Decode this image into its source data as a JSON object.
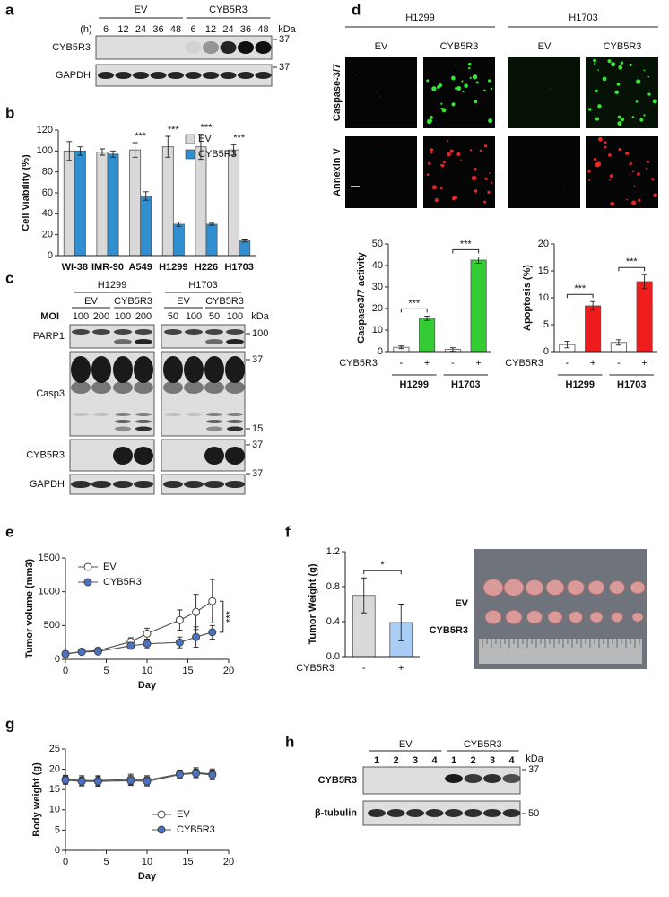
{
  "labels": [
    "a",
    "b",
    "c",
    "d",
    "e",
    "f",
    "g",
    "h"
  ],
  "panel_a": {
    "unit_header": "(h)",
    "groups": [
      "EV",
      "CYB5R3"
    ],
    "lanes": [
      "6",
      "12",
      "24",
      "36",
      "48",
      "6",
      "12",
      "24",
      "36",
      "48"
    ],
    "kda": "kDa",
    "rows": [
      {
        "name": "CYB5R3",
        "marker": "37"
      },
      {
        "name": "GAPDH",
        "marker": "37"
      }
    ]
  },
  "panel_c": {
    "cells": [
      "H1299",
      "H1703"
    ],
    "groups": [
      "EV",
      "CYB5R3",
      "EV",
      "CYB5R3"
    ],
    "moi_label": "MOI",
    "lanes": [
      "100",
      "200",
      "100",
      "200",
      "50",
      "100",
      "50",
      "100"
    ],
    "kda": "kDa",
    "rows": [
      {
        "name": "PARP1",
        "markers": [
          "100"
        ]
      },
      {
        "name": "Casp3",
        "markers": [
          "37",
          "15"
        ]
      },
      {
        "name": "CYB5R3",
        "markers": [
          "37"
        ]
      },
      {
        "name": "GAPDH",
        "markers": [
          "37"
        ]
      }
    ]
  },
  "panel_d_images": {
    "cells": [
      "H1299",
      "H1703"
    ],
    "columns": [
      "EV",
      "CYB5R3",
      "EV",
      "CYB5R3"
    ],
    "rows": [
      "Caspase-3/7",
      "Annexin V"
    ]
  },
  "panel_f_photo": {
    "rows": [
      "EV",
      "CYB5R3"
    ]
  },
  "panel_h": {
    "groups": [
      "EV",
      "CYB5R3"
    ],
    "lanes": [
      "1",
      "2",
      "3",
      "4",
      "1",
      "2",
      "3",
      "4"
    ],
    "kda": "kDa",
    "rows": [
      {
        "name": "CYB5R3",
        "marker": "37"
      },
      {
        "name": "β-tubulin",
        "marker": "50"
      }
    ]
  },
  "chart_data": [
    {
      "type": "bar",
      "ylabel": "Cell Viability (%)",
      "categories": [
        "WI-38",
        "IMR-90",
        "A549",
        "H1299",
        "H226",
        "H1703"
      ],
      "series": [
        {
          "name": "EV",
          "color": "#d9d9d9",
          "values": [
            100,
            99,
            101,
            104,
            104,
            101
          ],
          "errors": [
            9,
            3,
            7,
            10,
            12,
            5
          ]
        },
        {
          "name": "CYB5R3",
          "color": "#2f8fd0",
          "values": [
            100,
            97,
            57,
            30,
            30,
            14
          ],
          "errors": [
            4,
            3,
            4,
            2,
            1,
            1
          ]
        }
      ],
      "ylim": [
        0,
        120
      ],
      "yticks": [
        0,
        20,
        40,
        60,
        80,
        100,
        120
      ],
      "annotations": [
        null,
        null,
        "***",
        "***",
        "***",
        "***"
      ],
      "legend": "upper right"
    },
    {
      "type": "bar",
      "ylabel": "Caspase3/7 activity",
      "categories": [
        "-",
        "+",
        "-",
        "+"
      ],
      "values": [
        2,
        15.5,
        1,
        42.5
      ],
      "errors": [
        0.6,
        1,
        0.8,
        1.5
      ],
      "colors": [
        "#ffffff",
        "#33cc33",
        "#ffffff",
        "#33cc33"
      ],
      "row_label": "CYB5R3",
      "groups": [
        "H1299",
        "H1703"
      ],
      "ylim": [
        0,
        50
      ],
      "yticks": [
        0,
        10,
        20,
        30,
        40,
        50
      ],
      "annotations": [
        "***",
        "***"
      ]
    },
    {
      "type": "bar",
      "ylabel": "Apoptosis (%)",
      "categories": [
        "-",
        "+",
        "-",
        "+"
      ],
      "values": [
        1.3,
        8.5,
        1.7,
        13
      ],
      "errors": [
        0.6,
        0.8,
        0.5,
        1.3
      ],
      "colors": [
        "#ffffff",
        "#ee1c1c",
        "#ffffff",
        "#ee1c1c"
      ],
      "row_label": "CYB5R3",
      "groups": [
        "H1299",
        "H1703"
      ],
      "ylim": [
        0,
        20
      ],
      "yticks": [
        0,
        5,
        10,
        15,
        20
      ],
      "annotations": [
        "***",
        "***"
      ]
    },
    {
      "type": "line",
      "xlabel": "Day",
      "ylabel": "Tumor volume (mm3)",
      "x": [
        0,
        2,
        4,
        8,
        10,
        14,
        16,
        18
      ],
      "series": [
        {
          "name": "EV",
          "color": "#ffffff",
          "values": [
            80,
            115,
            130,
            260,
            380,
            580,
            700,
            860
          ],
          "errors": [
            15,
            20,
            30,
            60,
            80,
            150,
            260,
            320
          ]
        },
        {
          "name": "CYB5R3",
          "color": "#4a72c4",
          "values": [
            80,
            110,
            115,
            200,
            230,
            250,
            330,
            400
          ],
          "errors": [
            15,
            20,
            25,
            50,
            70,
            80,
            150,
            100
          ]
        }
      ],
      "xlim": [
        0,
        20
      ],
      "xticks": [
        0,
        5,
        10,
        15,
        20
      ],
      "ylim": [
        0,
        1500
      ],
      "yticks": [
        0,
        500,
        1000,
        1500
      ],
      "annotations": [
        "***"
      ],
      "legend": "upper left"
    },
    {
      "type": "bar",
      "ylabel": "Tumor Weight (g)",
      "categories": [
        "-",
        "+"
      ],
      "values": [
        0.7,
        0.39
      ],
      "errors": [
        0.2,
        0.21
      ],
      "colors": [
        "#d9d9d9",
        "#a9cdf5"
      ],
      "row_label": "CYB5R3",
      "ylim": [
        0,
        1.2
      ],
      "yticks": [
        {
          "value": 0,
          "label": "0.0"
        },
        0.4,
        0.8,
        1.2
      ],
      "annotations": [
        "*"
      ]
    },
    {
      "type": "line",
      "xlabel": "Day",
      "ylabel": "Body weight (g)",
      "x": [
        0,
        2,
        4,
        8,
        10,
        14,
        16,
        18
      ],
      "series": [
        {
          "name": "EV",
          "color": "#ffffff",
          "values": [
            17.5,
            17.2,
            17.2,
            17.5,
            17.3,
            18.8,
            19.2,
            18.8
          ],
          "errors": [
            1,
            1.2,
            1.2,
            1.3,
            1.1,
            1,
            1.2,
            1.3
          ]
        },
        {
          "name": "CYB5R3",
          "color": "#4a72c4",
          "values": [
            17.3,
            17,
            17,
            17.2,
            17,
            18.7,
            19,
            18.6
          ],
          "errors": [
            1,
            1.1,
            1.2,
            1.2,
            1.1,
            1,
            1.1,
            1.2
          ]
        }
      ],
      "xlim": [
        0,
        20
      ],
      "xticks": [
        0,
        5,
        10,
        15,
        20
      ],
      "ylim": [
        0,
        25
      ],
      "yticks": [
        0,
        5,
        10,
        15,
        20,
        25
      ],
      "legend": "lower right"
    }
  ]
}
